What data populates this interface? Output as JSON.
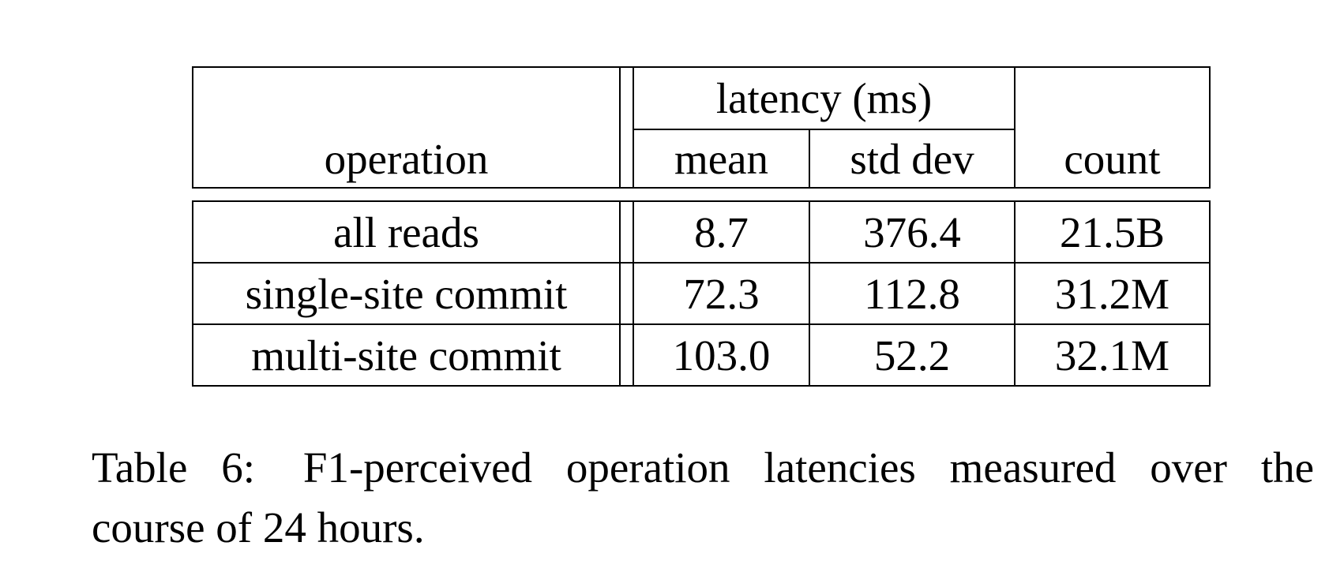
{
  "table": {
    "header": {
      "operation": "operation",
      "latency_group": "latency (ms)",
      "mean": "mean",
      "std_dev": "std dev",
      "count": "count"
    },
    "rows": [
      {
        "operation": "all reads",
        "mean": "8.7",
        "std_dev": "376.4",
        "count": "21.5B"
      },
      {
        "operation": "single-site commit",
        "mean": "72.3",
        "std_dev": "112.8",
        "count": "31.2M"
      },
      {
        "operation": "multi-site commit",
        "mean": "103.0",
        "std_dev": "52.2",
        "count": "32.1M"
      }
    ]
  },
  "caption": {
    "label": "Table 6:",
    "line1": "F1-perceived operation latencies measured over the",
    "line2": "course of 24 hours."
  }
}
